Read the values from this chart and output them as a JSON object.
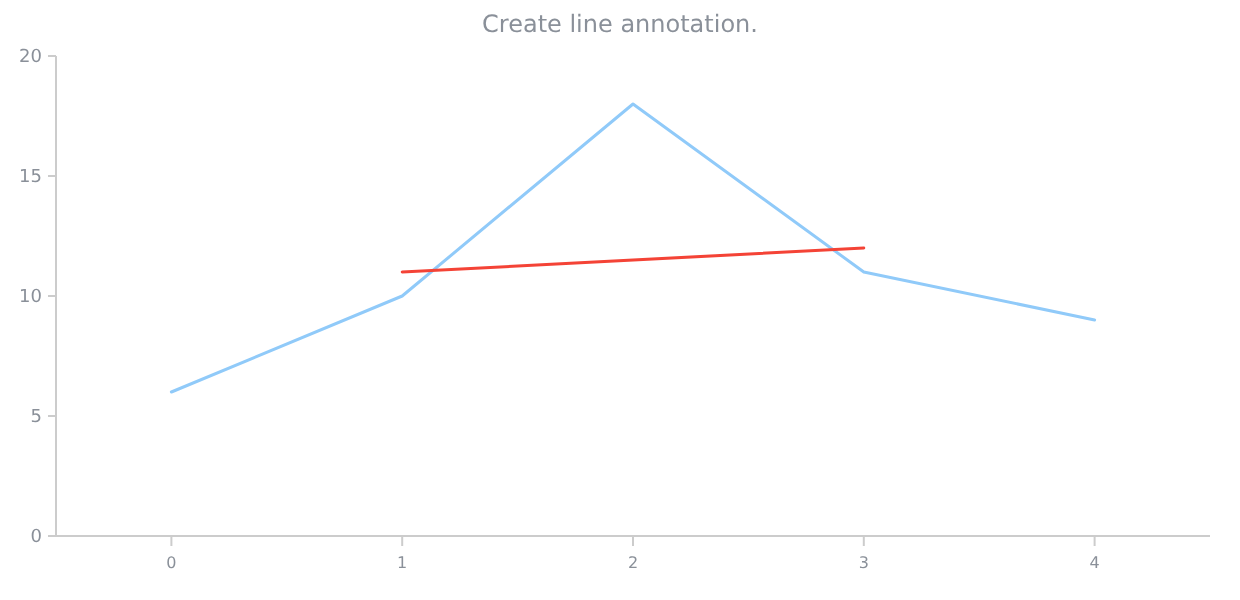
{
  "chart_data": {
    "type": "line",
    "title": "Create line annotation.",
    "x": [
      0,
      1,
      2,
      3,
      4
    ],
    "xlim": [
      -0.5,
      4.5
    ],
    "xticks": [
      0,
      1,
      2,
      3,
      4
    ],
    "ylim": [
      0,
      20
    ],
    "yticks": [
      0,
      5,
      10,
      15,
      20
    ],
    "grid": false,
    "marker": "none",
    "line_style": "solid",
    "series": [
      {
        "color": "#90caf9",
        "values": [
          6,
          10,
          18,
          11,
          9
        ]
      },
      {
        "color": "#f44336",
        "x": [
          1,
          3
        ],
        "values": [
          11,
          12
        ]
      }
    ]
  }
}
